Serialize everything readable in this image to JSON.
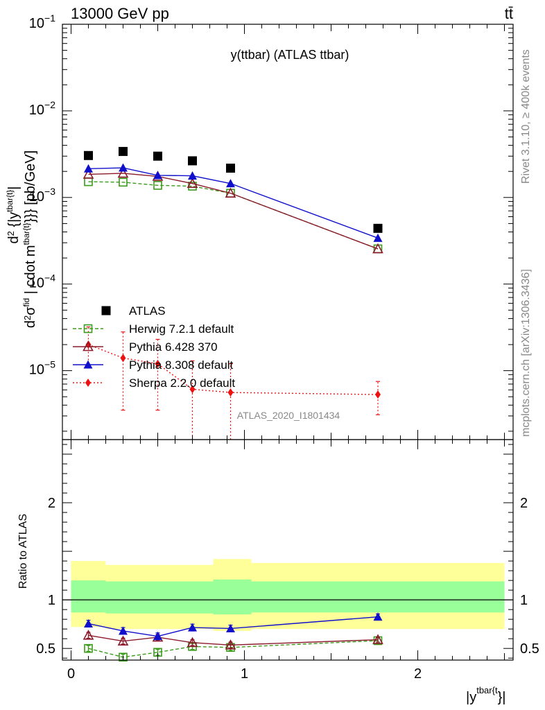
{
  "header": {
    "energy": "13000 GeV pp",
    "process": "tt̄"
  },
  "side": {
    "rivet": "Rivet 3.1.10, ≥ 400k events",
    "site": "mcplots.cern.ch [arXiv:1306.3436]"
  },
  "chart_data": [
    {
      "type": "line",
      "title": "y(ttbar) (ATLAS ttbar)",
      "watermark": "ATLAS_2020_I1801434",
      "ylabel": "d²σ^fid / d² {|y^tbar{t}|} cdot m^tbar{t}}} [pb/GeV]",
      "yscale": "log",
      "ylim": [
        1.6e-06,
        0.1
      ],
      "xlim": [
        -0.05,
        2.55
      ],
      "y_ticklabels": [
        {
          "v": 0.1,
          "base": "10",
          "exp": "−1"
        },
        {
          "v": 0.01,
          "base": "10",
          "exp": "−2"
        },
        {
          "v": 0.001,
          "base": "10",
          "exp": "−3"
        },
        {
          "v": 0.0001,
          "base": "10",
          "exp": "−4"
        },
        {
          "v": 1e-05,
          "base": "10",
          "exp": "−5"
        }
      ],
      "x": [
        0.1,
        0.3,
        0.5,
        0.7,
        0.92,
        1.77
      ],
      "series": [
        {
          "name": "ATLAS",
          "color": "#000000",
          "marker": "square",
          "dash": "none",
          "values": [
            0.00305,
            0.0034,
            0.003,
            0.00265,
            0.00218,
            0.00044
          ]
        },
        {
          "name": "Herwig 7.2.1 default",
          "color": "#3a9a1a",
          "marker": "open-square",
          "dash": "5,3",
          "values": [
            0.00152,
            0.0015,
            0.00138,
            0.00135,
            0.00112,
            0.000255
          ]
        },
        {
          "name": "Pythia 6.428 370",
          "color": "#8b1a2a",
          "marker": "open-triangle",
          "dash": "none",
          "values": [
            0.00185,
            0.0019,
            0.00175,
            0.00145,
            0.00112,
            0.000255
          ]
        },
        {
          "name": "Pythia 8.308 default",
          "color": "#1010cc",
          "marker": "triangle",
          "dash": "none",
          "values": [
            0.00215,
            0.0022,
            0.0018,
            0.00178,
            0.00145,
            0.00034
          ]
        },
        {
          "name": "Sherpa 2.2.0 default",
          "color": "#ee1111",
          "marker": "diamond",
          "dash": "2,3",
          "values": [
            2e-05,
            1.4e-05,
            1.2e-05,
            6.1e-06,
            5.6e-06,
            5.3e-06
          ],
          "err_lo": [
            1.1e-05,
            3.5e-06,
            3.5e-06,
            1.6e-06,
            1.6e-06,
            3.1e-06
          ],
          "err_hi": [
            3.2e-05,
            2.8e-05,
            2.3e-05,
            1.3e-05,
            1.2e-05,
            7.5e-06
          ]
        }
      ],
      "legend": "left"
    },
    {
      "type": "line",
      "ylabel": "Ratio to ATLAS",
      "xlabel": "|y^tbar{t}}|",
      "ylim": [
        0.38,
        2.65
      ],
      "xlim": [
        -0.05,
        2.55
      ],
      "y_ticklabels": [
        {
          "v": 0.5,
          "t": "0.5"
        },
        {
          "v": 1,
          "t": "1"
        },
        {
          "v": 2,
          "t": "2"
        }
      ],
      "x_ticklabels": [
        {
          "v": 0,
          "t": "0"
        },
        {
          "v": 1,
          "t": "1"
        },
        {
          "v": 2,
          "t": "2"
        }
      ],
      "bands": {
        "edges": [
          0.0,
          0.2,
          0.6,
          0.82,
          1.04,
          2.5
        ],
        "outer_lo": [
          0.72,
          0.7,
          0.7,
          0.68,
          0.7
        ],
        "outer_hi": [
          1.4,
          1.36,
          1.36,
          1.42,
          1.38
        ],
        "inner_lo": [
          0.87,
          0.86,
          0.86,
          0.85,
          0.87
        ],
        "inner_hi": [
          1.2,
          1.19,
          1.19,
          1.21,
          1.19
        ],
        "inner_color": "#99ff99",
        "outer_color": "#ffff99"
      },
      "x": [
        0.1,
        0.3,
        0.5,
        0.7,
        0.92,
        1.77
      ],
      "series": [
        {
          "name": "Herwig 7.2.1 default",
          "color": "#3a9a1a",
          "marker": "open-square",
          "dash": "5,3",
          "values": [
            0.5,
            0.41,
            0.46,
            0.52,
            0.51,
            0.58
          ],
          "err": [
            0.03,
            0.03,
            0.03,
            0.03,
            0.03,
            0.025
          ]
        },
        {
          "name": "Pythia 6.428 370",
          "color": "#8b1a2a",
          "marker": "open-triangle",
          "dash": "none",
          "values": [
            0.635,
            0.575,
            0.615,
            0.56,
            0.535,
            0.59
          ],
          "err": [
            0.03,
            0.03,
            0.03,
            0.03,
            0.03,
            0.025
          ]
        },
        {
          "name": "Pythia 8.308 default",
          "color": "#1010cc",
          "marker": "triangle",
          "dash": "none",
          "values": [
            0.755,
            0.68,
            0.625,
            0.715,
            0.705,
            0.825
          ],
          "err": [
            0.035,
            0.035,
            0.035,
            0.035,
            0.035,
            0.03
          ]
        }
      ]
    }
  ]
}
